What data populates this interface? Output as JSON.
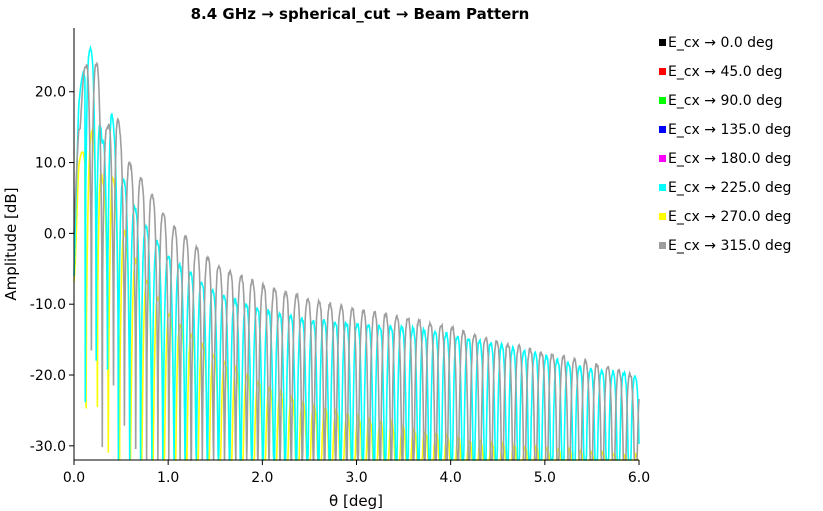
{
  "chart_data": {
    "type": "line",
    "title": "8.4 GHz → spherical_cut → Beam Pattern",
    "xlabel": "θ [deg]",
    "ylabel": "Amplitude [dB]",
    "xlim": [
      0.0,
      6.0
    ],
    "ylim": [
      -32.0,
      29.0
    ],
    "x_ticks": [
      "0.0",
      "1.0",
      "2.0",
      "3.0",
      "4.0",
      "5.0",
      "6.0"
    ],
    "y_ticks": [
      "-30.0",
      "-20.0",
      "-10.0",
      "0.0",
      "10.0",
      "20.0"
    ],
    "x_tick_values": [
      0,
      1,
      2,
      3,
      4,
      5,
      6
    ],
    "y_tick_values": [
      -30,
      -20,
      -10,
      0,
      10,
      20
    ],
    "grid": false,
    "legend_position": "right",
    "series": [
      {
        "name": "E_cx → 0.0 deg",
        "color": "#000000",
        "visible_trace": false
      },
      {
        "name": "E_cx → 45.0 deg",
        "color": "#ff0000",
        "visible_trace": false
      },
      {
        "name": "E_cx → 90.0 deg",
        "color": "#00ff00",
        "visible_trace": false
      },
      {
        "name": "E_cx → 135.0 deg",
        "color": "#0000ff",
        "visible_trace": false
      },
      {
        "name": "E_cx → 180.0 deg",
        "color": "#ff00ff",
        "visible_trace": false
      },
      {
        "name": "E_cx → 225.0 deg",
        "color": "#00ffff",
        "visible_trace": true,
        "x": [
          0.0,
          0.05,
          0.1,
          0.15,
          0.2,
          0.25,
          0.3,
          0.35,
          0.4,
          0.45,
          0.5,
          0.6,
          0.8,
          1.0,
          1.5,
          2.0,
          2.5,
          3.0,
          3.5,
          4.0,
          4.5,
          5.0,
          5.5,
          5.9,
          6.0
        ],
        "peaks": [
          -2.0,
          18.0,
          25.0,
          27.0,
          25.5,
          21.0,
          13.0,
          17.5,
          17.8,
          12.0,
          9.0,
          5.0,
          0.5,
          -3.0,
          -8.0,
          -10.5,
          -12.0,
          -12.5,
          -13.0,
          -14.0,
          -15.5,
          -17.0,
          -19.0,
          -19.5,
          -20.0
        ]
      },
      {
        "name": "E_cx → 270.0 deg",
        "color": "#ffff00",
        "visible_trace": true,
        "x": [
          0.0,
          0.05,
          0.1,
          0.15,
          0.2,
          0.25,
          0.3,
          0.35,
          0.4,
          0.45,
          0.5,
          0.6,
          0.8,
          1.0,
          1.5,
          2.0,
          2.5,
          3.0,
          3.5,
          4.0,
          4.5,
          5.0,
          5.5,
          5.9,
          6.0
        ],
        "peaks": [
          -4.0,
          10.0,
          12.5,
          12.8,
          15.0,
          15.3,
          8.0,
          5.0,
          9.5,
          5.0,
          2.0,
          -2.0,
          -7.0,
          -11.0,
          -17.0,
          -21.0,
          -24.0,
          -25.5,
          -27.0,
          -28.5,
          -29.5,
          -30.0,
          -30.5,
          -31.0,
          -31.0
        ]
      },
      {
        "name": "E_cx → 315.0 deg",
        "color": "#9e9e9e",
        "visible_trace": true,
        "x": [
          0.0,
          0.05,
          0.1,
          0.15,
          0.2,
          0.25,
          0.3,
          0.35,
          0.4,
          0.45,
          0.5,
          0.6,
          0.8,
          1.0,
          1.5,
          2.0,
          2.5,
          3.0,
          3.5,
          4.0,
          4.5,
          5.0,
          5.5,
          5.9,
          6.0
        ],
        "peaks": [
          0.0,
          17.0,
          23.0,
          24.8,
          25.0,
          24.0,
          19.0,
          15.0,
          17.0,
          17.8,
          14.0,
          10.0,
          6.5,
          2.0,
          -4.0,
          -7.0,
          -9.0,
          -10.5,
          -11.5,
          -13.0,
          -15.0,
          -16.5,
          -18.0,
          -19.5,
          -21.0
        ]
      }
    ]
  }
}
